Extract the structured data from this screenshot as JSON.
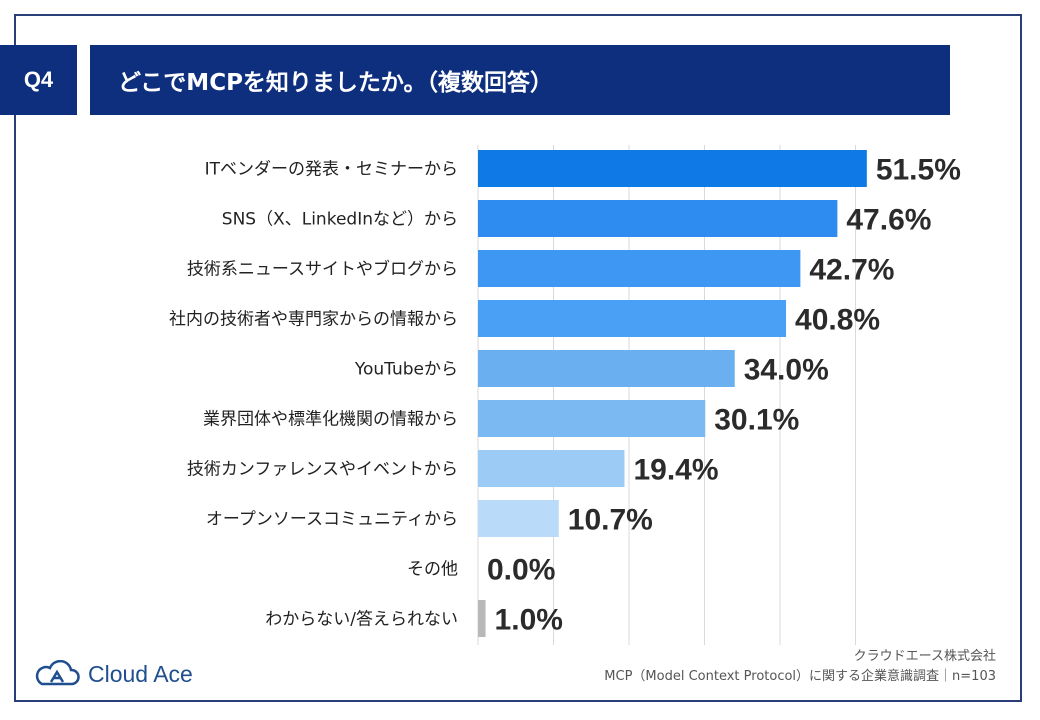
{
  "question": {
    "badge": "Q4",
    "title": "どこでMCPを知りましたか。（複数回答）"
  },
  "chart_data": {
    "type": "bar",
    "orientation": "horizontal",
    "title": "どこでMCPを知りましたか。（複数回答）",
    "categories": [
      "ITベンダーの発表・セミナーから",
      "SNS（X、LinkedInなど）から",
      "技術系ニュースサイトやブログから",
      "社内の技術者や専門家からの情報から",
      "YouTubeから",
      "業界団体や標準化機関の情報から",
      "技術カンファレンスやイベントから",
      "オープンソースコミュニティから",
      "その他",
      "わからない/答えられない"
    ],
    "values": [
      51.5,
      47.6,
      42.7,
      40.8,
      34.0,
      30.1,
      19.4,
      10.7,
      0.0,
      1.0
    ],
    "value_labels": [
      "51.5%",
      "47.6%",
      "42.7%",
      "40.8%",
      "34.0%",
      "30.1%",
      "19.4%",
      "10.7%",
      "0.0%",
      "1.0%"
    ],
    "bar_colors": [
      "#0f7ae5",
      "#2e8cf0",
      "#3d97f3",
      "#4aa0f5",
      "#6aafef",
      "#7ab9f2",
      "#9ccbf6",
      "#b9daf8",
      "#9ccbf6",
      "#b8b8b8"
    ],
    "xlim": [
      0,
      52
    ],
    "grid": true
  },
  "footer": {
    "company": "クラウドエース株式会社",
    "survey": "MCP（Model Context Protocol）に関する企業意識調査｜n=103",
    "logo_text": "Cloud Ace",
    "logo_color": "#1f4f8f"
  }
}
